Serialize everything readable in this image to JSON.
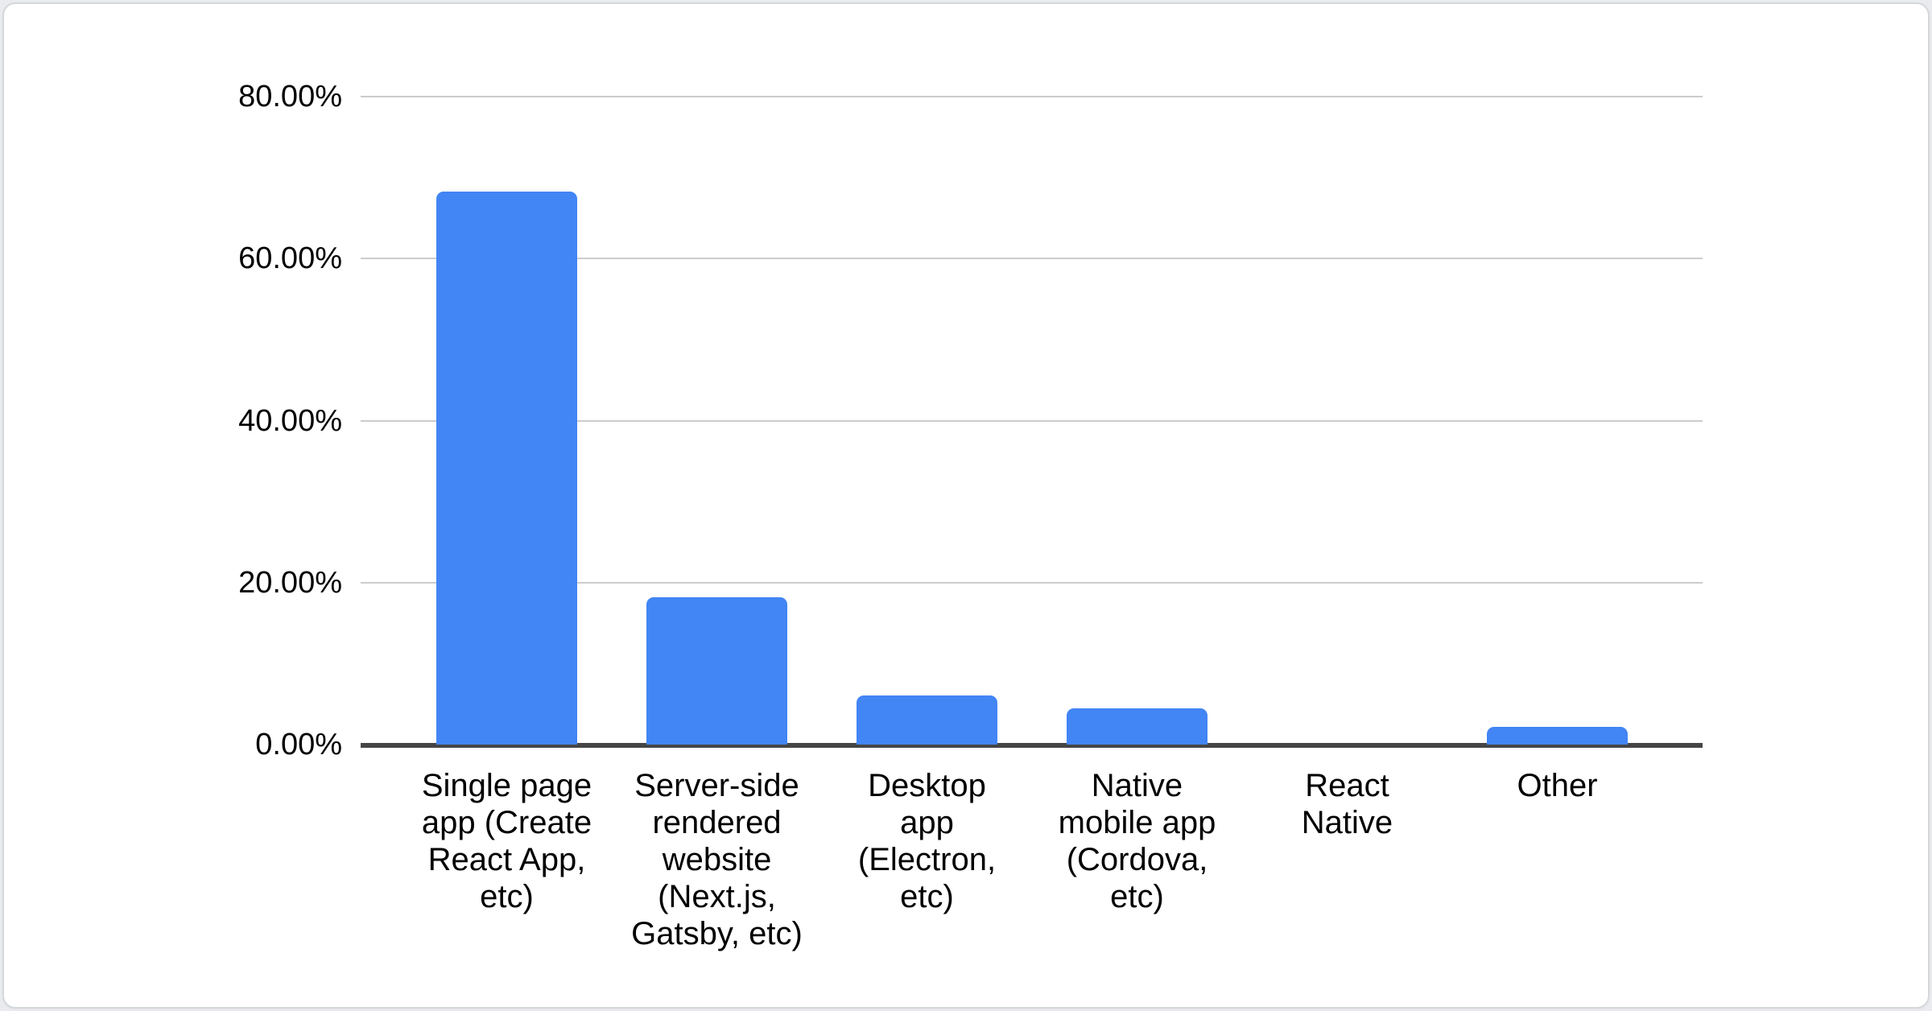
{
  "window": {
    "background_color": "#e9ebee"
  },
  "card": {
    "background_color": "#ffffff",
    "border_color": "#d5d8db"
  },
  "chart_data": {
    "type": "bar",
    "title": "",
    "xlabel": "",
    "ylabel": "",
    "categories": [
      "Single page app (Create React App, etc)",
      "Server-side rendered website (Next.js, Gatsby, etc)",
      "Desktop app (Electron, etc)",
      "Native mobile app (Cordova, etc)",
      "React Native",
      "Other"
    ],
    "category_display_lines": [
      [
        "Single page",
        "app (Create",
        "React App,",
        "etc)"
      ],
      [
        "Server-side",
        "rendered",
        "website",
        "(Next.js,",
        "Gatsby, etc)"
      ],
      [
        "Desktop",
        "app",
        "(Electron,",
        "etc)"
      ],
      [
        "Native",
        "mobile app",
        "(Cordova,",
        "etc)"
      ],
      [
        "React",
        "Native"
      ],
      [
        "Other"
      ]
    ],
    "values": [
      68.3,
      18.2,
      6.1,
      4.5,
      0,
      2.2
    ],
    "value_unit": "%",
    "ylim": [
      0,
      80
    ],
    "y_ticks": [
      {
        "value": 80,
        "label": "80.00%"
      },
      {
        "value": 60,
        "label": "60.00%"
      },
      {
        "value": 40,
        "label": "40.00%"
      },
      {
        "value": 20,
        "label": "20.00%"
      },
      {
        "value": 0,
        "label": "0.00%"
      }
    ],
    "grid": true,
    "legend_position": "none",
    "bar_color": "#4285F4",
    "gridline_color": "#cccccc",
    "axis_line_color": "#454545",
    "tick_label_color": "#000000",
    "category_label_color": "#000000"
  }
}
